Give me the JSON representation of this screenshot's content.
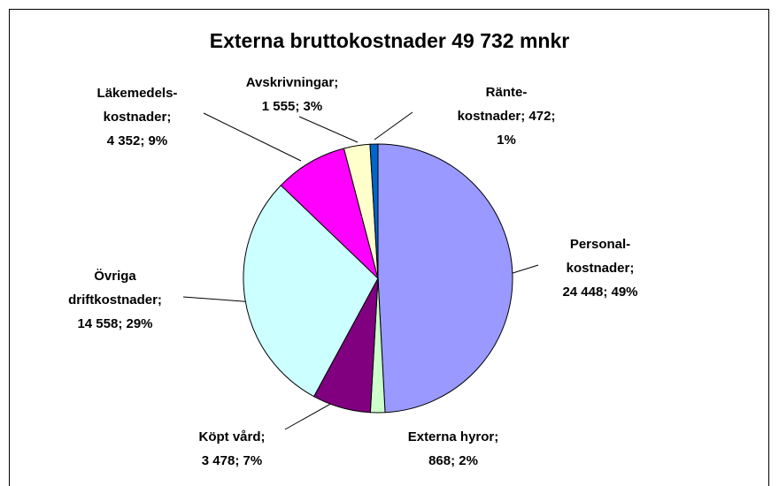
{
  "chart_data": {
    "type": "pie",
    "title": "Externa bruttokostnader 49 732 mnkr",
    "values": [
      24448,
      868,
      3478,
      14558,
      4352,
      1555,
      472
    ],
    "value_labels": [
      "Personal-\nkostnader;\n24 448; 49%",
      "Externa hyror;\n868; 2%",
      "Köpt vård;\n3 478; 7%",
      "Övriga\ndriftkostnader;\n14 558; 29%",
      "Läkemedels-\nkostnader;\n4 352; 9%",
      "Avskrivningar;\n1 555; 3%",
      "Ränte-\nkostnader; 472;\n1%"
    ],
    "colors": [
      "#9999ff",
      "#ccffcc",
      "#800080",
      "#ccffff",
      "#ff00ff",
      "#ffffcc",
      "#0066cc"
    ]
  }
}
